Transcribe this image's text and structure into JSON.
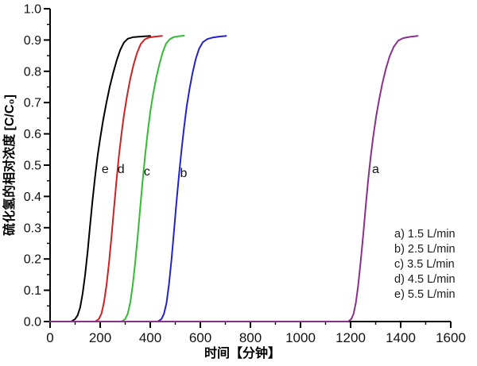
{
  "chart_data": {
    "type": "line",
    "title": "",
    "xlabel": "时间【分钟】",
    "ylabel": "硫化氢的相对浓度 [C/C₀]",
    "xlim": [
      0,
      1600
    ],
    "ylim": [
      0.0,
      1.0
    ],
    "x_major_ticks": [
      0,
      200,
      400,
      600,
      800,
      1000,
      1200,
      1400,
      1600
    ],
    "x_tick_labels": [
      "0",
      "200",
      "400",
      "600",
      "800",
      "1000",
      "1200",
      "1400",
      "1600"
    ],
    "x_minor_step": 100,
    "y_major_ticks": [
      0.0,
      0.1,
      0.2,
      0.3,
      0.4,
      0.5,
      0.6,
      0.7,
      0.8,
      0.9,
      1.0
    ],
    "y_tick_labels": [
      "0.0",
      "0.1",
      "0.2",
      "0.3",
      "0.4",
      "0.5",
      "0.6",
      "0.7",
      "0.8",
      "0.9",
      "1.0"
    ],
    "y_minor_step": 0.05,
    "grid": false,
    "plateau_value": 0.913,
    "legend_position": "inside-bottom-right",
    "series": [
      {
        "id": "e",
        "name": "e) 5.5 L/min",
        "flow_rate": "5.5 L/min",
        "color": "#000000",
        "points": [
          [
            0,
            0
          ],
          [
            85,
            0
          ],
          [
            100,
            0.008
          ],
          [
            110,
            0.02
          ],
          [
            120,
            0.045
          ],
          [
            130,
            0.09
          ],
          [
            140,
            0.15
          ],
          [
            150,
            0.225
          ],
          [
            160,
            0.31
          ],
          [
            170,
            0.39
          ],
          [
            180,
            0.465
          ],
          [
            190,
            0.53
          ],
          [
            200,
            0.585
          ],
          [
            212,
            0.645
          ],
          [
            225,
            0.7
          ],
          [
            238,
            0.75
          ],
          [
            252,
            0.795
          ],
          [
            266,
            0.835
          ],
          [
            280,
            0.868
          ],
          [
            295,
            0.892
          ],
          [
            310,
            0.904
          ],
          [
            330,
            0.909
          ],
          [
            360,
            0.911
          ],
          [
            400,
            0.913
          ]
        ]
      },
      {
        "id": "d",
        "name": "d) 4.5 L/min",
        "flow_rate": "4.5 L/min",
        "color": "#cc2222",
        "points": [
          [
            0,
            0
          ],
          [
            180,
            0
          ],
          [
            195,
            0.008
          ],
          [
            205,
            0.025
          ],
          [
            215,
            0.06
          ],
          [
            225,
            0.115
          ],
          [
            235,
            0.185
          ],
          [
            245,
            0.27
          ],
          [
            255,
            0.36
          ],
          [
            265,
            0.45
          ],
          [
            275,
            0.53
          ],
          [
            285,
            0.6
          ],
          [
            295,
            0.66
          ],
          [
            307,
            0.72
          ],
          [
            320,
            0.775
          ],
          [
            333,
            0.82
          ],
          [
            347,
            0.858
          ],
          [
            362,
            0.887
          ],
          [
            378,
            0.902
          ],
          [
            395,
            0.908
          ],
          [
            420,
            0.911
          ],
          [
            447,
            0.913
          ]
        ]
      },
      {
        "id": "c",
        "name": "c) 3.5 L/min",
        "flow_rate": "3.5 L/min",
        "color": "#33bb33",
        "points": [
          [
            0,
            0
          ],
          [
            285,
            0
          ],
          [
            300,
            0.008
          ],
          [
            310,
            0.025
          ],
          [
            320,
            0.06
          ],
          [
            330,
            0.115
          ],
          [
            340,
            0.19
          ],
          [
            350,
            0.275
          ],
          [
            360,
            0.365
          ],
          [
            370,
            0.455
          ],
          [
            380,
            0.535
          ],
          [
            390,
            0.605
          ],
          [
            400,
            0.67
          ],
          [
            412,
            0.73
          ],
          [
            424,
            0.78
          ],
          [
            437,
            0.825
          ],
          [
            450,
            0.862
          ],
          [
            463,
            0.888
          ],
          [
            477,
            0.902
          ],
          [
            492,
            0.909
          ],
          [
            512,
            0.912
          ],
          [
            535,
            0.914
          ]
        ]
      },
      {
        "id": "b",
        "name": "b) 2.5 L/min",
        "flow_rate": "2.5 L/min",
        "color": "#2222cc",
        "points": [
          [
            0,
            0
          ],
          [
            430,
            0
          ],
          [
            445,
            0.008
          ],
          [
            455,
            0.025
          ],
          [
            465,
            0.06
          ],
          [
            475,
            0.12
          ],
          [
            485,
            0.2
          ],
          [
            495,
            0.29
          ],
          [
            505,
            0.385
          ],
          [
            515,
            0.47
          ],
          [
            525,
            0.55
          ],
          [
            535,
            0.62
          ],
          [
            545,
            0.685
          ],
          [
            557,
            0.745
          ],
          [
            569,
            0.795
          ],
          [
            582,
            0.84
          ],
          [
            595,
            0.872
          ],
          [
            610,
            0.893
          ],
          [
            628,
            0.903
          ],
          [
            650,
            0.908
          ],
          [
            675,
            0.911
          ],
          [
            703,
            0.913
          ]
        ]
      },
      {
        "id": "a",
        "name": "a) 1.5 L/min",
        "flow_rate": "1.5 L/min",
        "color": "#8b2f8b",
        "points": [
          [
            0,
            0
          ],
          [
            1190,
            0
          ],
          [
            1203,
            0.008
          ],
          [
            1212,
            0.025
          ],
          [
            1221,
            0.06
          ],
          [
            1230,
            0.115
          ],
          [
            1240,
            0.19
          ],
          [
            1250,
            0.275
          ],
          [
            1260,
            0.365
          ],
          [
            1270,
            0.45
          ],
          [
            1280,
            0.525
          ],
          [
            1290,
            0.59
          ],
          [
            1302,
            0.655
          ],
          [
            1314,
            0.71
          ],
          [
            1327,
            0.762
          ],
          [
            1341,
            0.808
          ],
          [
            1356,
            0.848
          ],
          [
            1372,
            0.878
          ],
          [
            1390,
            0.898
          ],
          [
            1410,
            0.906
          ],
          [
            1435,
            0.91
          ],
          [
            1468,
            0.913
          ]
        ]
      }
    ],
    "curve_labels": [
      {
        "text": "e",
        "t": 220,
        "v": 0.487
      },
      {
        "text": "d",
        "t": 283,
        "v": 0.487
      },
      {
        "text": "c",
        "t": 387,
        "v": 0.48
      },
      {
        "text": "b",
        "t": 533,
        "v": 0.475
      },
      {
        "text": "a",
        "t": 1300,
        "v": 0.487
      }
    ],
    "legend": [
      "a) 1.5 L/min",
      "b) 2.5 L/min",
      "c) 3.5 L/min",
      "d) 4.5 L/min",
      "e) 5.5 L/min"
    ]
  }
}
